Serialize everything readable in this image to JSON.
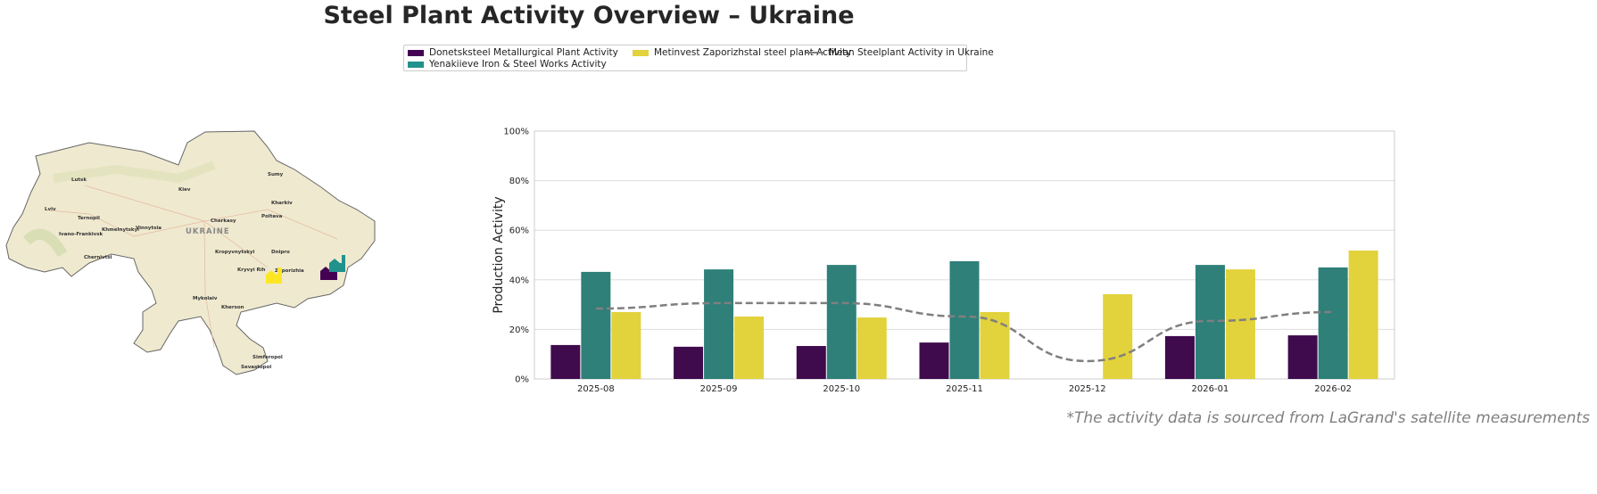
{
  "title": "Steel Plant Activity Overview – Ukraine",
  "legend": [
    {
      "label": "Donetsksteel Metallurgical Plant Activity",
      "color": "#440154"
    },
    {
      "label": "Yenakiieve Iron & Steel Works Activity",
      "color": "#21918c"
    },
    {
      "label": "Metinvest Zaporizhstal steel plant Activity",
      "color": "#fde725"
    },
    {
      "label": "Mean Steelplant Activity in Ukraine",
      "color": "#7f7f7f"
    }
  ],
  "map": {
    "country_label": "UKRAINE",
    "cities": [
      "Lutsk",
      "Kiev",
      "Kharkiv",
      "Lviv",
      "Ternopil",
      "Khmelnytskyi",
      "Vinnytsia",
      "Ivano-Frankivsk",
      "Cherkasy",
      "Poltava",
      "Chernivtsi",
      "Kropyvnytskyi",
      "Dnipro",
      "Kryvyi Rih",
      "Zaporizhia",
      "Mykolaiv",
      "Kherson",
      "Simferopol",
      "Sevastopol",
      "Sumy"
    ],
    "plant_icon": "factory-icon"
  },
  "chart_data": {
    "type": "bar",
    "categories": [
      "2025-08",
      "2025-09",
      "2025-10",
      "2025-11",
      "2025-12",
      "2026-01",
      "2026-02"
    ],
    "series": [
      {
        "name": "Donetsksteel Metallurgical Plant Activity",
        "color": "#440154",
        "values": [
          13.7,
          13.0,
          13.3,
          14.7,
          null,
          17.3,
          17.6
        ]
      },
      {
        "name": "Yenakiieve Iron & Steel Works Activity",
        "color": "#21918c",
        "values": [
          43.2,
          44.2,
          46.0,
          47.5,
          null,
          46.0,
          45.0
        ]
      },
      {
        "name": "Metinvest Zaporizhstal steel plant Activity",
        "color": "#fde725",
        "values": [
          27.0,
          25.2,
          24.8,
          27.0,
          34.2,
          44.2,
          51.8
        ]
      },
      {
        "name": "Mean Steelplant Activity in Ukraine",
        "type": "line",
        "style": "dashed",
        "color": "#7f7f7f",
        "values": [
          28.4,
          30.6,
          30.6,
          25.2,
          7.2,
          23.4,
          27.0
        ]
      }
    ],
    "ylabel": "Production Activity",
    "yticks": [
      "0%",
      "20%",
      "40%",
      "60%",
      "80%",
      "100%"
    ],
    "ylim": [
      0,
      100
    ],
    "grid": "horizontal"
  },
  "footnote": "*The activity data is sourced from LaGrand's satellite measurements"
}
